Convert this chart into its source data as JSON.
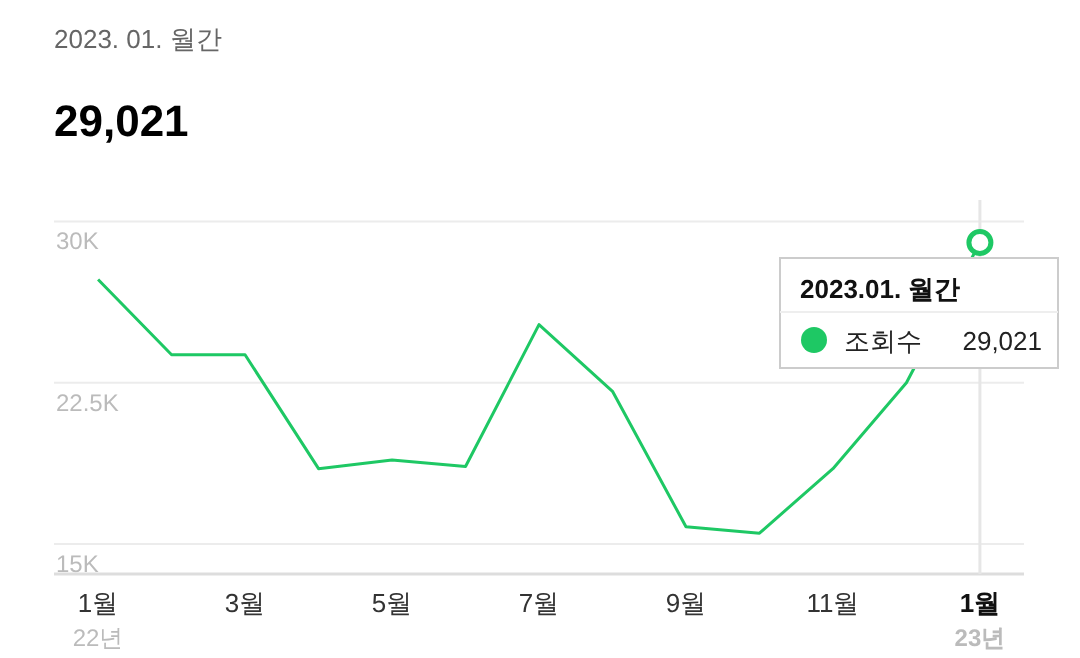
{
  "chart_data": {
    "type": "line",
    "title": "2023. 01. 월간",
    "subtitle": "29,021",
    "categories": [
      "1월\n22년",
      null,
      "3월",
      null,
      "5월",
      null,
      "7월",
      null,
      "9월",
      null,
      "11월",
      null,
      "1월\n23년"
    ],
    "series": [
      {
        "name": "조회수",
        "color": "#1ec864",
        "values": [
          27300,
          23800,
          23800,
          18500,
          18900,
          18600,
          25200,
          22100,
          15800,
          15500,
          18500,
          22500,
          29021
        ]
      },
      {
        "type": "scatter",
        "color": "#1ec864",
        "marker": "circle",
        "values": [
          null,
          null,
          null,
          null,
          null,
          null,
          null,
          null,
          null,
          null,
          null,
          null,
          29021
        ]
      }
    ],
    "ylim": [
      13600,
      31000
    ],
    "yticks": [
      {
        "value": 15000,
        "label": "15K"
      },
      {
        "value": 22500,
        "label": "22.5K"
      },
      {
        "value": 30000,
        "label": "30K"
      }
    ],
    "grid": "y",
    "legend": "top right",
    "legend_title": "2023.01. 월간",
    "marker": "none",
    "line_style": "solid",
    "ref_lines": [
      {
        "axis": "x",
        "value": "1월\n23년",
        "color": "#e6e6e6"
      }
    ],
    "annotations": [
      "29,021"
    ]
  }
}
